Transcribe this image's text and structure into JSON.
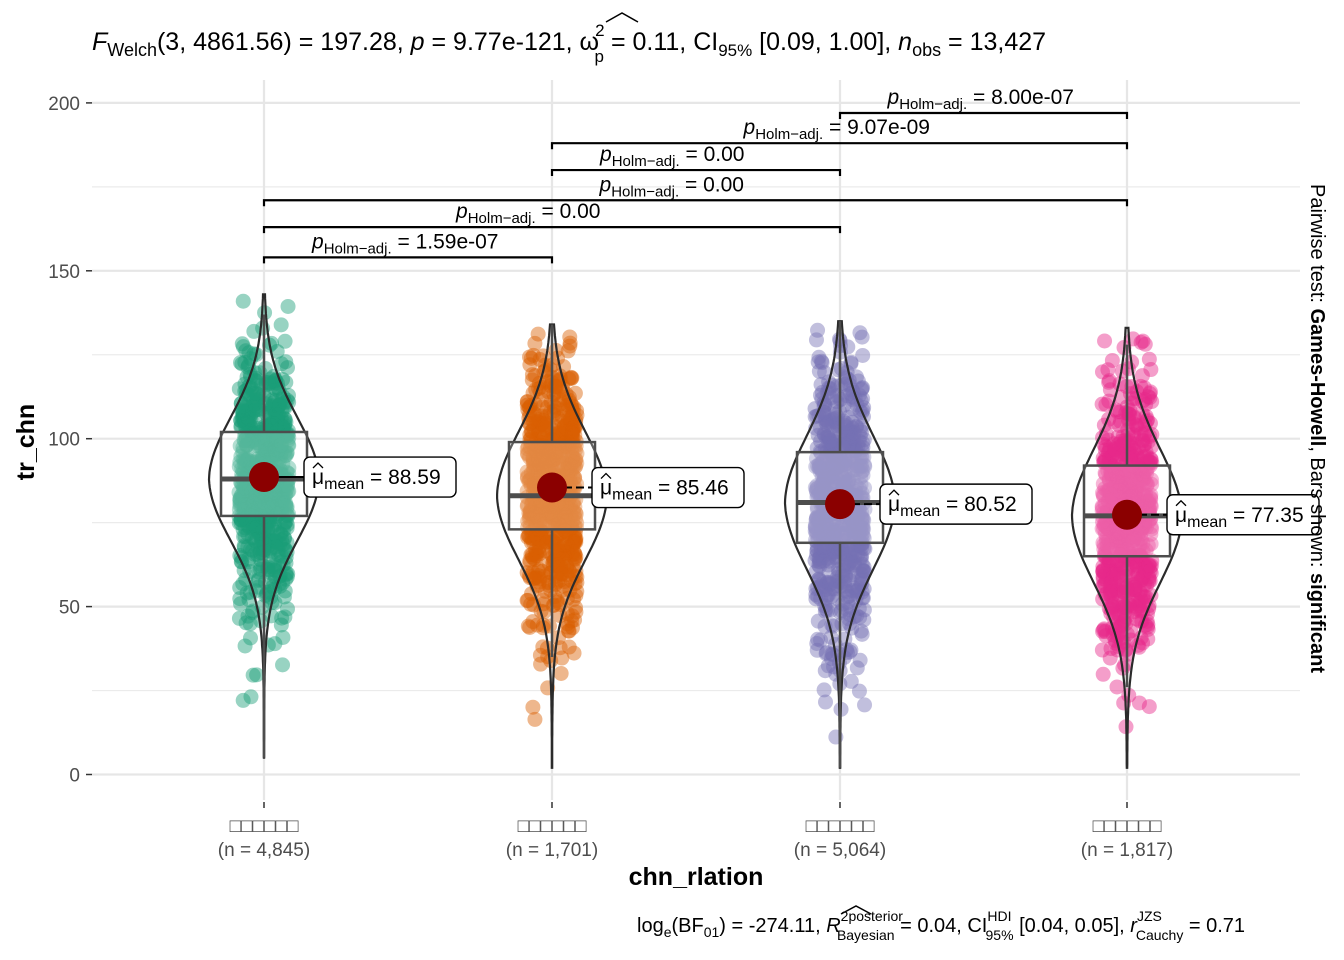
{
  "chart_data": {
    "type": "violin-box-scatter",
    "title_parts": {
      "f_letter": "F",
      "f_sub": "Welch",
      "dfs": "(3, 4861.56)",
      "f_value": " = 197.28, ",
      "p_letter": "p",
      "p_value": " = 9.77e-121, ",
      "omega": "ω",
      "omega_sup": "2",
      "omega_sub": "p",
      "omega_value": " = 0.11, CI",
      "ci_sub": "95%",
      "ci_value": " [0.09, 1.00], ",
      "n_letter": "n",
      "n_sub": "obs",
      "n_value": " = 13,427"
    },
    "caption_parts": {
      "log_text": "log",
      "log_sub": "e",
      "bf_text": "(BF",
      "bf_sub": "01",
      "bf_value": ") = -274.11, ",
      "r_letter": "R",
      "r_sup": "2",
      "r_sup2": "posterior",
      "r_sub": "Bayesian",
      "r_value": " = 0.04, CI",
      "ci_sup": "HDI",
      "ci_sub": "95%",
      "ci_value": " [0.04, 0.05], ",
      "rc_letter": "r",
      "rc_sup": "JZS",
      "rc_sub": "Cauchy",
      "rc_value": " = 0.71"
    },
    "subtitle_right": {
      "prefix": "Pairwise test: ",
      "test": "Games-Howell",
      "middle": ", Bars shown: ",
      "shown": "significant"
    },
    "xlabel": "chn_rlation",
    "ylabel": "tr_chn",
    "ylim": [
      -5,
      205
    ],
    "yticks": [
      0,
      50,
      100,
      150,
      200
    ],
    "ytick_labels": [
      "0",
      "50",
      "100",
      "150",
      "200"
    ],
    "grid": true,
    "categories": [
      {
        "label": "□□□□□□",
        "n": "(n = 4,845)",
        "color": "#1b9e77",
        "mean": 88.59,
        "mean_label": "= 88.59",
        "box": {
          "q1": 77,
          "median": 88,
          "q3": 102,
          "whisker_low": 5,
          "whisker_high": 137
        },
        "range": [
          5,
          143
        ]
      },
      {
        "label": "□□□□□□",
        "n": "(n = 1,701)",
        "color": "#d95f02",
        "mean": 85.46,
        "mean_label": "= 85.46",
        "box": {
          "q1": 73,
          "median": 83,
          "q3": 99,
          "whisker_low": 35,
          "whisker_high": 134
        },
        "range": [
          2,
          134
        ]
      },
      {
        "label": "□□□□□□",
        "n": "(n = 5,064)",
        "color": "#7570b3",
        "mean": 80.52,
        "mean_label": "= 80.52",
        "box": {
          "q1": 69,
          "median": 81,
          "q3": 96,
          "whisker_low": 2,
          "whisker_high": 135
        },
        "range": [
          2,
          135
        ]
      },
      {
        "label": "□□□□□□",
        "n": "(n = 1,817)",
        "color": "#e7298a",
        "mean": 77.35,
        "mean_label": "= 77.35",
        "box": {
          "q1": 65,
          "median": 77,
          "q3": 92,
          "whisker_low": 26,
          "whisker_high": 128
        },
        "range": [
          2,
          133
        ]
      }
    ],
    "mean_marker": {
      "mu": "μ",
      "sub": "mean"
    },
    "comparisons": [
      {
        "from": 0,
        "to": 1,
        "y": 154,
        "p_prefix": "p",
        "p_sub": "Holm−adj.",
        "p_value": " = 1.59e-07"
      },
      {
        "from": 0,
        "to": 2,
        "y": 163,
        "p_prefix": "p",
        "p_sub": "Holm−adj.",
        "p_value": " = 0.00"
      },
      {
        "from": 0,
        "to": 3,
        "y": 171,
        "p_prefix": "p",
        "p_sub": "Holm−adj.",
        "p_value": " = 0.00"
      },
      {
        "from": 1,
        "to": 2,
        "y": 180,
        "p_prefix": "p",
        "p_sub": "Holm−adj.",
        "p_value": " = 0.00"
      },
      {
        "from": 1,
        "to": 3,
        "y": 188,
        "p_prefix": "p",
        "p_sub": "Holm−adj.",
        "p_value": " = 9.07e-09"
      },
      {
        "from": 2,
        "to": 3,
        "y": 197,
        "p_prefix": "p",
        "p_sub": "Holm−adj.",
        "p_value": " = 8.00e-07"
      }
    ]
  }
}
